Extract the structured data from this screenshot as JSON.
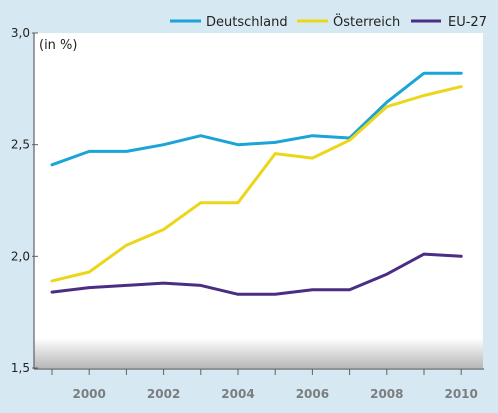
{
  "chart_data": {
    "type": "line",
    "unit_label": "(in %)",
    "x": [
      1999,
      2000,
      2001,
      2002,
      2003,
      2004,
      2005,
      2006,
      2007,
      2008,
      2009,
      2010
    ],
    "x_tick_labels": [
      "2000",
      "2002",
      "2004",
      "2006",
      "2008",
      "2010"
    ],
    "y_tick_labels": [
      "1,5",
      "2,0",
      "2,5",
      "3,0"
    ],
    "ylim": [
      1.5,
      3.0
    ],
    "grid": false,
    "legend_position": "top-right",
    "series": [
      {
        "name": "Deutschland",
        "color": "#1aa4d8",
        "values": [
          2.41,
          2.47,
          2.47,
          2.5,
          2.54,
          2.5,
          2.51,
          2.54,
          2.53,
          2.69,
          2.82,
          2.82
        ]
      },
      {
        "name": "Österreich",
        "color": "#ecd61a",
        "values": [
          1.89,
          1.93,
          2.05,
          2.12,
          2.24,
          2.24,
          2.46,
          2.44,
          2.52,
          2.67,
          2.72,
          2.76
        ]
      },
      {
        "name": "EU-27",
        "color": "#4b2d83",
        "values": [
          1.84,
          1.86,
          1.87,
          1.88,
          1.87,
          1.83,
          1.83,
          1.85,
          1.85,
          1.92,
          2.01,
          2.0
        ]
      }
    ]
  }
}
